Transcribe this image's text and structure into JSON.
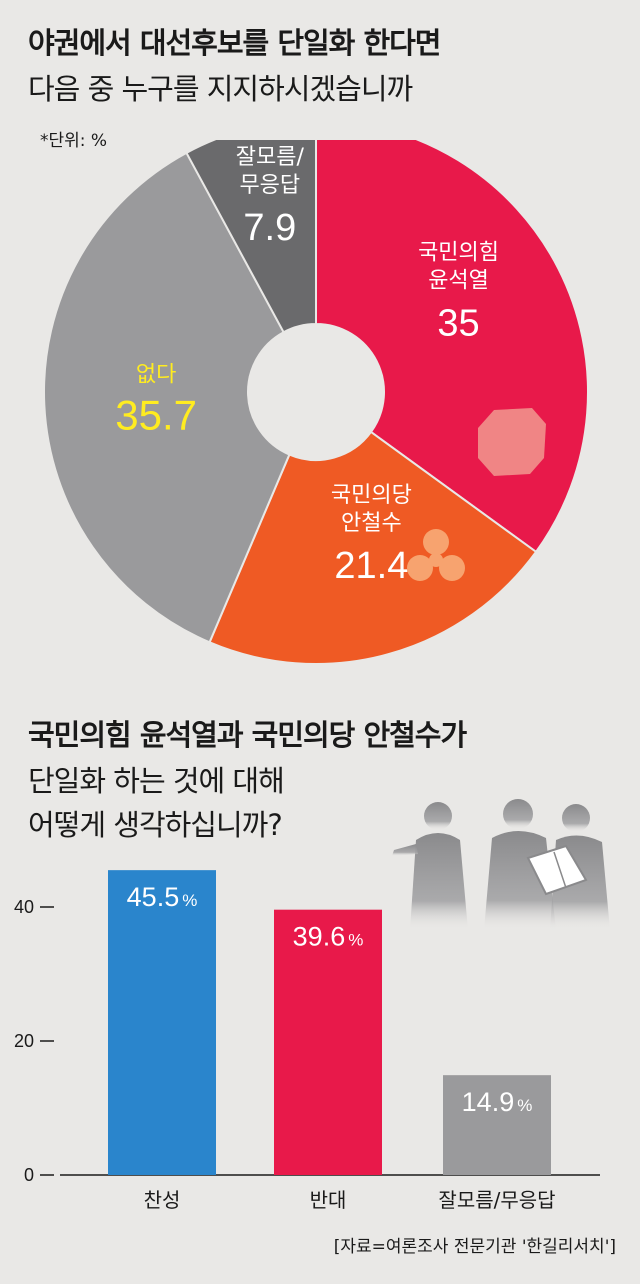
{
  "header": {
    "title_line1": "야권에서 대선후보를 단일화 한다면",
    "title_line2": "다음 중 누구를 지지하시겠습니까",
    "unit_note": "*단위:  %"
  },
  "section2": {
    "title_line1": "국민의힘 윤석열과 국민의당 안철수가",
    "title_line2": "단일화 하는 것에 대해",
    "title_line3": "어떻게 생각하십니까?"
  },
  "source": "[자료=여론조사 전문기관 '한길리서치']",
  "colors": {
    "red": "#e8194a",
    "orange": "#ef5a24",
    "gray": "#9a9a9c",
    "dark_gray": "#6a6a6c",
    "blue": "#2a85cc",
    "yellow": "#ffec20"
  },
  "chart_data": [
    {
      "type": "pie",
      "title": "야권에서 대선후보를 단일화 한다면 다음 중 누구를 지지하시겠습니까",
      "unit": "%",
      "slices": [
        {
          "label_line1": "국민의힘",
          "label_line2": "윤석열",
          "value": 35,
          "color": "#e8194a",
          "text_color": "#ffffff",
          "icon": "ppp-party-logo-icon"
        },
        {
          "label_line1": "국민의당",
          "label_line2": "안철수",
          "value": 21.4,
          "color": "#ef5a24",
          "text_color": "#ffffff",
          "icon": "people-party-logo-icon"
        },
        {
          "label_line1": "없다",
          "label_line2": "",
          "value": 35.7,
          "color": "#9a9a9c",
          "text_color": "#ffec20",
          "icon": ""
        },
        {
          "label_line1": "잘모름/",
          "label_line2": "무응답",
          "value": 7.9,
          "color": "#6a6a6c",
          "text_color": "#ffffff",
          "icon": ""
        }
      ]
    },
    {
      "type": "bar",
      "title": "국민의힘 윤석열과 국민의당 안철수가 단일화 하는 것에 대해 어떻게 생각하십니까?",
      "categories": [
        "찬성",
        "반대",
        "잘모름/무응답"
      ],
      "values": [
        45.5,
        39.6,
        14.9
      ],
      "value_labels": [
        "45.5",
        "39.6",
        "14.9"
      ],
      "unit": "%",
      "colors": [
        "#2a85cc",
        "#e8194a",
        "#9a9a9c"
      ],
      "ylim": [
        0,
        50
      ],
      "yticks": [
        0,
        20,
        40
      ],
      "grid": false
    }
  ]
}
